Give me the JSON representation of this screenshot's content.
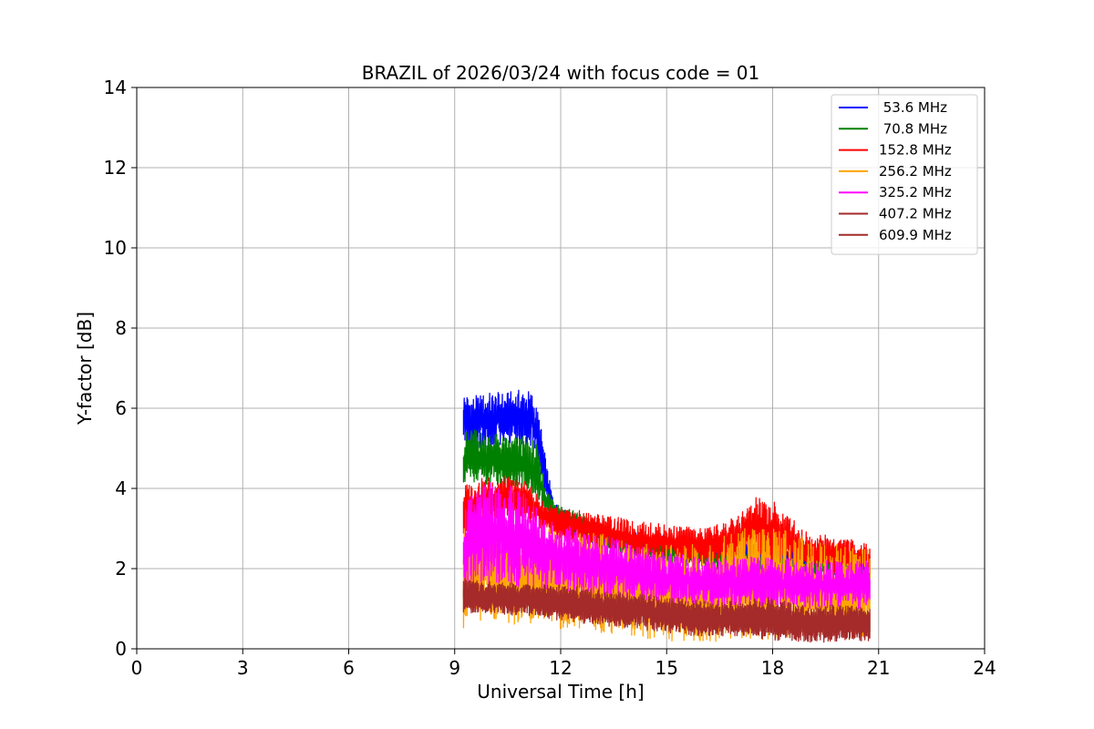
{
  "chart_data": {
    "type": "line",
    "title": "BRAZIL of 2026/03/24 with focus code = 01",
    "xlabel": "Universal Time [h]",
    "ylabel": "Y-factor [dB]",
    "xlim": [
      0,
      24
    ],
    "ylim": [
      0,
      14
    ],
    "xticks": [
      0,
      3,
      6,
      9,
      12,
      15,
      18,
      21,
      24
    ],
    "yticks": [
      0,
      2,
      4,
      6,
      8,
      10,
      12,
      14
    ],
    "grid": true,
    "legend_position": "top-right",
    "series": [
      {
        "name": " 53.6 MHz",
        "color": "#0000ff",
        "x": [
          9.25,
          9.5,
          10,
          10.5,
          11,
          11.2,
          11.4,
          11.6,
          11.8,
          12,
          12.5,
          13,
          14,
          15,
          16,
          17,
          18,
          19,
          20,
          20.75
        ],
        "low": [
          5.2,
          5.0,
          5.0,
          5.1,
          5.0,
          5.0,
          4.6,
          3.6,
          3.2,
          3.0,
          2.8,
          2.6,
          2.4,
          2.2,
          2.1,
          2.1,
          2.0,
          1.9,
          1.8,
          1.7
        ],
        "high": [
          6.4,
          6.3,
          6.4,
          6.4,
          6.5,
          6.4,
          5.8,
          4.6,
          3.7,
          3.5,
          3.3,
          3.1,
          2.9,
          2.8,
          2.7,
          2.7,
          2.6,
          2.6,
          2.5,
          2.4
        ]
      },
      {
        "name": " 70.8 MHz",
        "color": "#008000",
        "x": [
          9.25,
          9.5,
          10,
          10.5,
          11,
          11.3,
          11.6,
          12,
          12.5,
          13,
          13.5,
          14,
          15,
          16,
          17,
          18,
          19,
          20,
          20.75
        ],
        "low": [
          4.0,
          4.1,
          4.1,
          4.0,
          3.9,
          3.7,
          3.3,
          3.0,
          2.8,
          2.6,
          2.4,
          2.2,
          2.1,
          2.0,
          1.9,
          1.8,
          1.8,
          1.7,
          1.6
        ],
        "high": [
          5.4,
          5.5,
          5.4,
          5.3,
          5.3,
          5.2,
          4.0,
          3.6,
          3.4,
          3.2,
          3.0,
          2.8,
          2.6,
          2.5,
          2.4,
          2.3,
          2.2,
          2.2,
          2.1
        ]
      },
      {
        "name": "152.8 MHz",
        "color": "#ff0000",
        "x": [
          9.25,
          9.5,
          10,
          10.5,
          11,
          11.5,
          12,
          13,
          14,
          15,
          16,
          17,
          17.5,
          18,
          18.3,
          19,
          20,
          20.75
        ],
        "low": [
          2.8,
          3.0,
          3.2,
          3.3,
          3.2,
          2.9,
          2.7,
          2.5,
          2.3,
          2.2,
          2.1,
          2.1,
          2.1,
          2.0,
          2.0,
          1.9,
          1.8,
          1.7
        ],
        "high": [
          4.1,
          4.2,
          4.3,
          4.3,
          4.2,
          3.7,
          3.5,
          3.4,
          3.2,
          3.1,
          3.0,
          3.3,
          3.8,
          3.7,
          3.5,
          2.9,
          2.8,
          2.6
        ]
      },
      {
        "name": "256.2 MHz",
        "color": "#ffa500",
        "x": [
          9.25,
          9.5,
          10,
          11,
          11.5,
          12,
          13,
          14,
          15,
          16,
          17,
          18,
          19,
          20,
          20.75
        ],
        "low": [
          0.5,
          0.6,
          0.6,
          0.6,
          0.6,
          0.5,
          0.4,
          0.3,
          0.2,
          0.15,
          0.2,
          0.2,
          0.2,
          0.2,
          0.3
        ],
        "high": [
          3.2,
          3.3,
          3.4,
          3.2,
          3.1,
          3.0,
          2.9,
          2.7,
          2.6,
          2.6,
          3.0,
          3.1,
          2.8,
          2.6,
          2.5
        ]
      },
      {
        "name": "325.2 MHz",
        "color": "#ff00ff",
        "x": [
          9.25,
          9.5,
          10,
          10.5,
          11,
          11.5,
          12,
          13,
          14,
          15,
          16,
          17,
          18,
          19,
          20,
          20.75
        ],
        "low": [
          1.4,
          1.5,
          1.6,
          1.6,
          1.5,
          1.4,
          1.4,
          1.3,
          1.2,
          1.1,
          1.1,
          1.0,
          1.0,
          1.0,
          1.0,
          1.0
        ],
        "high": [
          3.6,
          3.9,
          4.2,
          4.1,
          3.9,
          3.4,
          3.1,
          2.9,
          2.6,
          2.4,
          2.3,
          2.3,
          2.3,
          2.2,
          2.2,
          2.2
        ]
      },
      {
        "name": "407.2 MHz",
        "color": "#a52a2a",
        "x": [
          9.25,
          9.5,
          10,
          11,
          12,
          13,
          14,
          15,
          16,
          17,
          18,
          19,
          20,
          20.75
        ],
        "low": [
          0.9,
          0.9,
          0.9,
          0.8,
          0.7,
          0.6,
          0.5,
          0.4,
          0.3,
          0.3,
          0.2,
          0.15,
          0.15,
          0.2
        ],
        "high": [
          1.7,
          1.7,
          1.6,
          1.6,
          1.5,
          1.4,
          1.3,
          1.2,
          1.1,
          1.1,
          1.1,
          1.0,
          1.0,
          1.0
        ]
      },
      {
        "name": "609.9 MHz",
        "color": "#a52a2a",
        "x": [
          9.25,
          9.5,
          10,
          11,
          12,
          13,
          14,
          15,
          16,
          17,
          18,
          19,
          20,
          20.75
        ],
        "low": [
          1.0,
          1.0,
          0.9,
          0.9,
          0.8,
          0.7,
          0.6,
          0.5,
          0.4,
          0.35,
          0.3,
          0.25,
          0.2,
          0.2
        ],
        "high": [
          1.8,
          1.7,
          1.7,
          1.6,
          1.6,
          1.5,
          1.4,
          1.3,
          1.2,
          1.2,
          1.3,
          1.1,
          1.1,
          1.0
        ]
      }
    ]
  }
}
